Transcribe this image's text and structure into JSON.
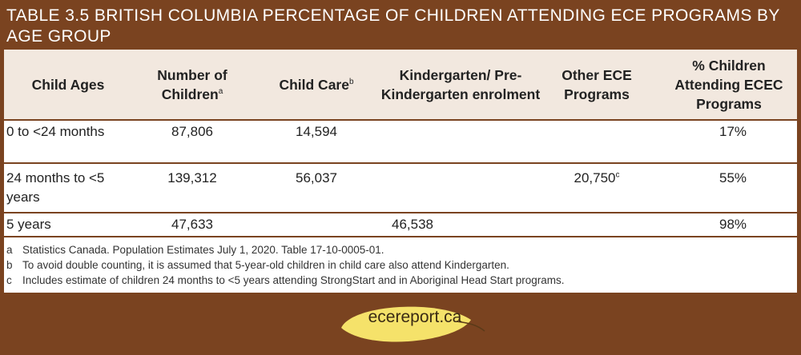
{
  "title": "TABLE 3.5 BRITISH COLUMBIA PERCENTAGE OF CHILDREN ATTENDING ECE PROGRAMS BY AGE GROUP",
  "headers": [
    {
      "label": "Child Ages",
      "sup": ""
    },
    {
      "label": "Number of Children",
      "sup": "a"
    },
    {
      "label": "Child Care",
      "sup": "b"
    },
    {
      "label": "Kindergarten/ Pre-Kindergarten enrolment",
      "sup": ""
    },
    {
      "label": "Other ECE Programs",
      "sup": ""
    },
    {
      "label": "% Children Attending ECEC Programs",
      "sup": ""
    }
  ],
  "rows": [
    {
      "age": "0 to <24 months",
      "children": "87,806",
      "child_care": "14,594",
      "kindergarten": "",
      "other": "",
      "other_sup": "",
      "percent": "17%"
    },
    {
      "age": "24 months to <5 years",
      "children": "139,312",
      "child_care": "56,037",
      "kindergarten": "",
      "other": "20,750",
      "other_sup": "c",
      "percent": "55%"
    },
    {
      "age": "5 years",
      "children": "47,633",
      "child_care": "",
      "kindergarten": "46,538",
      "other": "",
      "other_sup": "",
      "percent": "98%"
    }
  ],
  "notes": [
    {
      "letter": "a",
      "text": "Statistics Canada. Population Estimates July 1, 2020. Table 17-10-0005-01."
    },
    {
      "letter": "b",
      "text": "To avoid double counting, it is assumed that 5-year-old children in child care also attend Kindergarten."
    },
    {
      "letter": "c",
      "text": "Includes estimate of children 24 months to <5 years attending StrongStart and in Aboriginal Head Start programs."
    }
  ],
  "logo": {
    "text": "ecereport.ca"
  },
  "colors": {
    "background": "#7a4320",
    "header_bg": "#f2e8df",
    "leaf": "#f5e26a"
  }
}
